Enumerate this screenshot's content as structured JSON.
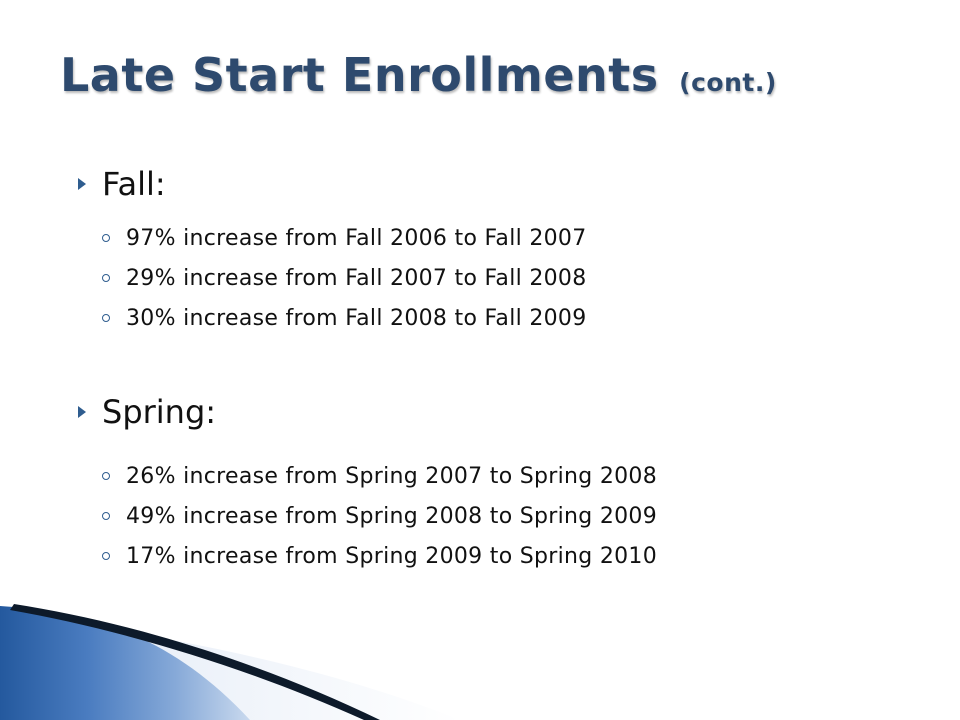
{
  "title": {
    "main": "Late Start Enrollments",
    "suffix": "(cont.)"
  },
  "sections": [
    {
      "heading": "Fall:",
      "bullets": [
        "97% increase from Fall 2006 to Fall 2007",
        "29% increase from Fall 2007 to Fall 2008",
        "30% increase from Fall 2008 to Fall 2009"
      ]
    },
    {
      "heading": "Spring:",
      "bullets": [
        "26% increase from Spring 2007 to Spring 2008",
        "49% increase from Spring 2008 to Spring 2009",
        "17% increase from Spring 2009 to Spring 2010"
      ]
    }
  ],
  "theme": {
    "title_color": "#2e4a6e",
    "accent_blue": "#2f5d8f",
    "text_color": "#111111"
  },
  "icons": {
    "heading_bullet": "triangle-arrow-icon",
    "sub_bullet": "ring-icon"
  }
}
